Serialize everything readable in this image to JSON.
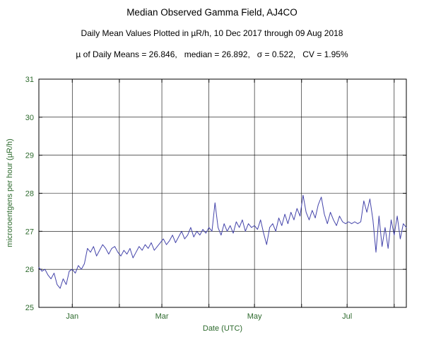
{
  "title": "Median Observed Gamma Field, AJ4CO",
  "subtitle": "Daily Mean Values Plotted in µR/h, 10 Dec 2017 through 09 Aug 2018",
  "stats_line": "µ of Daily Means = 26.846,   median = 26.892,   σ = 0.522,   CV = 1.95%",
  "chart_data": {
    "type": "line",
    "title": "Median Observed Gamma Field, AJ4CO",
    "subtitle": "Daily Mean Values Plotted in µR/h, 10 Dec 2017 through 09 Aug 2018",
    "xlabel": "Date (UTC)",
    "ylabel": "microroentgens per hour (µR/h)",
    "x_origin_date": "2017-12-10",
    "x_end_date": "2018-08-09",
    "x_unit": "days since 10 Dec 2017",
    "xlim": [
      0,
      242
    ],
    "ylim": [
      25,
      31
    ],
    "y_ticks": [
      25,
      26,
      27,
      28,
      29,
      30,
      31
    ],
    "x_ticks": [
      {
        "day": 22,
        "label": "Jan"
      },
      {
        "day": 81,
        "label": "Mar"
      },
      {
        "day": 142,
        "label": "May"
      },
      {
        "day": 203,
        "label": "Jul"
      }
    ],
    "x_gridlines_days": [
      22,
      53,
      81,
      112,
      142,
      173,
      203,
      234
    ],
    "grid": true,
    "legend": "none",
    "line_color": "#4444aa",
    "grid_color": "#000000",
    "axis_text_color": "#2d6a2d",
    "stats": {
      "mean_of_daily_means": 26.846,
      "median": 26.892,
      "sigma": 0.522,
      "cv_percent": 1.95
    },
    "series": [
      {
        "name": "daily-mean-gamma-uRh",
        "x_start": 0,
        "x_step": 2,
        "y": [
          26.05,
          25.95,
          26.0,
          25.85,
          25.75,
          25.9,
          25.6,
          25.5,
          25.75,
          25.6,
          25.95,
          26.0,
          25.9,
          26.1,
          26.0,
          26.15,
          26.55,
          26.45,
          26.6,
          26.35,
          26.5,
          26.65,
          26.55,
          26.4,
          26.55,
          26.6,
          26.45,
          26.35,
          26.5,
          26.4,
          26.55,
          26.3,
          26.45,
          26.6,
          26.5,
          26.65,
          26.55,
          26.7,
          26.5,
          26.6,
          26.7,
          26.8,
          26.65,
          26.75,
          26.9,
          26.7,
          26.85,
          27.0,
          26.8,
          26.9,
          27.1,
          26.85,
          27.0,
          26.9,
          27.05,
          26.95,
          27.1,
          27.0,
          27.75,
          27.1,
          26.9,
          27.2,
          27.0,
          27.15,
          26.95,
          27.25,
          27.1,
          27.3,
          27.0,
          27.2,
          27.1,
          27.15,
          27.05,
          27.3,
          26.95,
          26.65,
          27.1,
          27.2,
          27.0,
          27.35,
          27.15,
          27.45,
          27.2,
          27.5,
          27.3,
          27.6,
          27.4,
          27.95,
          27.5,
          27.3,
          27.55,
          27.35,
          27.7,
          27.9,
          27.45,
          27.2,
          27.5,
          27.3,
          27.15,
          27.4,
          27.25,
          27.2,
          27.25,
          27.2,
          27.25,
          27.2,
          27.25,
          27.8,
          27.5,
          27.85,
          27.3,
          26.45,
          27.4,
          26.6,
          27.1,
          26.55,
          27.3,
          26.9,
          27.4,
          26.8,
          27.2,
          27.1
        ]
      }
    ]
  }
}
